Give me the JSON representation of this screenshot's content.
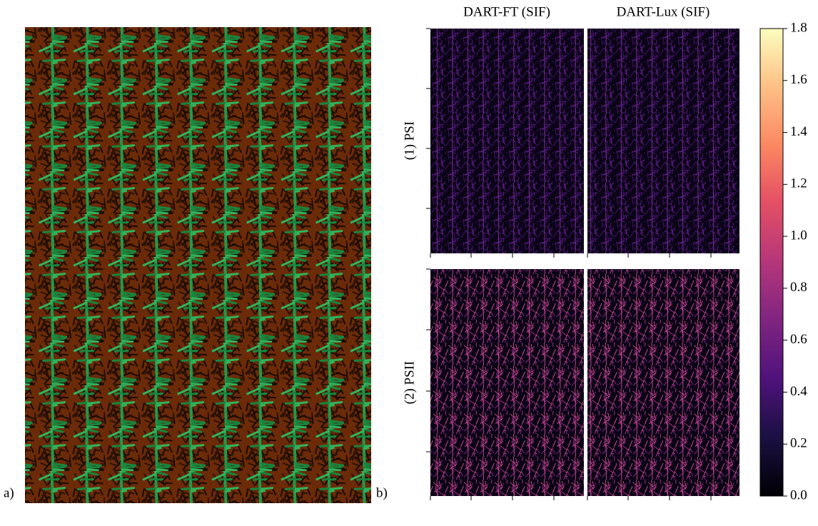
{
  "panel_labels": [
    "a)",
    "b)"
  ],
  "column_titles": [
    "DART-FT (SIF)",
    "DART-Lux (SIF)"
  ],
  "row_labels": [
    "(1) PSI",
    "(2) PSII"
  ],
  "colorbar_ticks": [
    "0.0",
    "0.2",
    "0.4",
    "0.6",
    "0.8",
    "1.0",
    "1.2",
    "1.4",
    "1.6",
    "1.8"
  ]
}
